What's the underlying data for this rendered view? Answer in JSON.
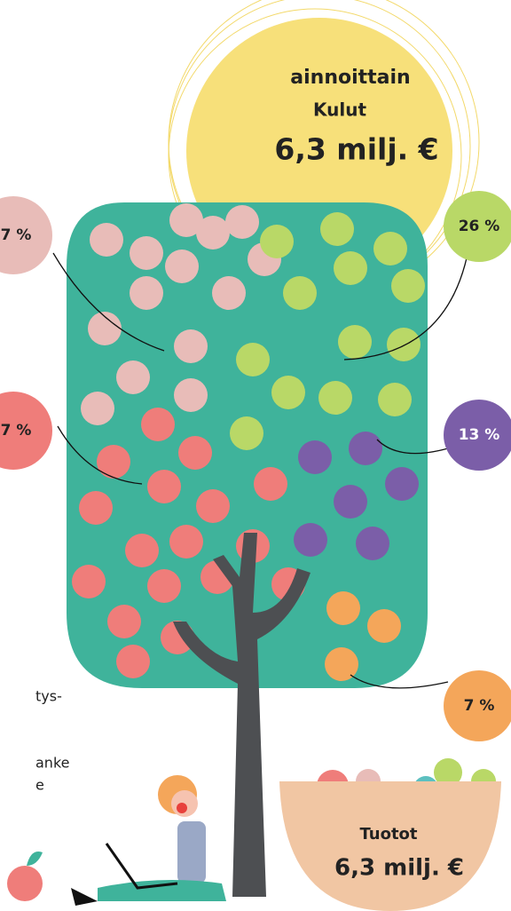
{
  "header": {
    "title": "ainnoittain"
  },
  "expenses": {
    "label": "Kulut",
    "amount": "6,3 milj. €"
  },
  "bubbles": [
    {
      "label": "7 %"
    },
    {
      "label": "26 %"
    },
    {
      "label": "7 %"
    },
    {
      "label": "13 %"
    },
    {
      "label": "7 %"
    }
  ],
  "side_text": [
    "tys-",
    "anke",
    "e"
  ],
  "income": {
    "label": "Tuotot",
    "amount": "6,3 milj. €"
  }
}
